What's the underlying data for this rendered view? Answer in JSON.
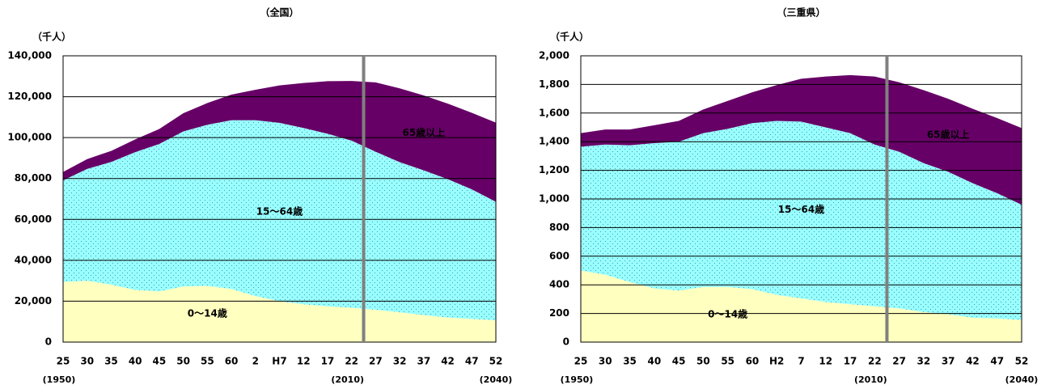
{
  "chart_data": [
    {
      "type": "stacked-area",
      "title": "（全国）",
      "y_label": "（千人）",
      "categories": [
        "25",
        "30",
        "35",
        "40",
        "45",
        "50",
        "55",
        "60",
        "2",
        "H7",
        "12",
        "17",
        "22",
        "27",
        "32",
        "37",
        "42",
        "47",
        "52"
      ],
      "x_sublabels": [
        "(1950)",
        null,
        null,
        null,
        null,
        null,
        null,
        null,
        null,
        null,
        null,
        null,
        "(2010)",
        null,
        null,
        null,
        null,
        null,
        "(2040)"
      ],
      "series": [
        {
          "name": "0～14歳",
          "color": "#ffffc0",
          "values": [
            29400,
            30000,
            28100,
            25500,
            24800,
            27200,
            27500,
            26000,
            22500,
            20000,
            18500,
            17500,
            16800,
            15800,
            14600,
            13200,
            12000,
            11300,
            10700
          ]
        },
        {
          "name": "15～64歳",
          "color": "#99ffff",
          "values": [
            49700,
            54700,
            60000,
            67400,
            72100,
            75800,
            78800,
            82500,
            86000,
            87200,
            86200,
            84400,
            81700,
            77300,
            73400,
            70800,
            67700,
            63400,
            57900
          ]
        },
        {
          "name": "65歳以上",
          "color": "#660066",
          "values": [
            4100,
            4800,
            5400,
            6200,
            7300,
            8900,
            10600,
            12500,
            14900,
            18300,
            22000,
            25700,
            29200,
            33900,
            36100,
            36600,
            36900,
            37400,
            38700
          ]
        }
      ],
      "ylim": [
        0,
        140000
      ],
      "yticks": [
        0,
        {
          "value": 20000,
          "label": "20,000"
        },
        {
          "value": 40000,
          "label": "40,000"
        },
        {
          "value": 60000,
          "label": "60,000"
        },
        {
          "value": 80000,
          "label": "80,000"
        },
        {
          "value": 100000,
          "label": "100,000"
        },
        {
          "value": 120000,
          "label": "120,000"
        },
        {
          "value": 140000,
          "label": "140,000"
        }
      ],
      "grid": true
    },
    {
      "type": "stacked-area",
      "title": "（三重県）",
      "y_label": "（千人）",
      "categories": [
        "25",
        "30",
        "35",
        "40",
        "45",
        "50",
        "55",
        "60",
        "H2",
        "7",
        "12",
        "17",
        "22",
        "27",
        "32",
        "37",
        "42",
        "47",
        "52"
      ],
      "x_sublabels": [
        "(1950)",
        null,
        null,
        null,
        null,
        null,
        null,
        null,
        null,
        null,
        null,
        null,
        "(2010)",
        null,
        null,
        null,
        null,
        null,
        "(2040)"
      ],
      "series": [
        {
          "name": "0～14歳",
          "color": "#ffffc0",
          "values": [
            500,
            470,
            420,
            375,
            360,
            385,
            385,
            370,
            330,
            305,
            280,
            265,
            250,
            235,
            210,
            195,
            170,
            165,
            155
          ]
        },
        {
          "name": "15～64歳",
          "color": "#99ffff",
          "values": [
            865,
            910,
            955,
            1015,
            1040,
            1075,
            1105,
            1160,
            1215,
            1235,
            1220,
            1195,
            1130,
            1095,
            1040,
            995,
            940,
            875,
            805
          ]
        },
        {
          "name": "65歳以上",
          "color": "#660066",
          "values": [
            95,
            105,
            110,
            125,
            145,
            165,
            195,
            215,
            250,
            300,
            355,
            405,
            475,
            485,
            510,
            510,
            520,
            525,
            535
          ]
        }
      ],
      "ylim": [
        0,
        2000
      ],
      "yticks": [
        0,
        200,
        400,
        600,
        800,
        {
          "value": 1000,
          "label": "1,000"
        },
        {
          "value": 1200,
          "label": "1,200"
        },
        {
          "value": 1400,
          "label": "1,400"
        },
        {
          "value": 1600,
          "label": "1,600"
        },
        {
          "value": 1800,
          "label": "1,800"
        },
        {
          "value": 2000,
          "label": "2,000"
        }
      ],
      "grid": true
    }
  ]
}
